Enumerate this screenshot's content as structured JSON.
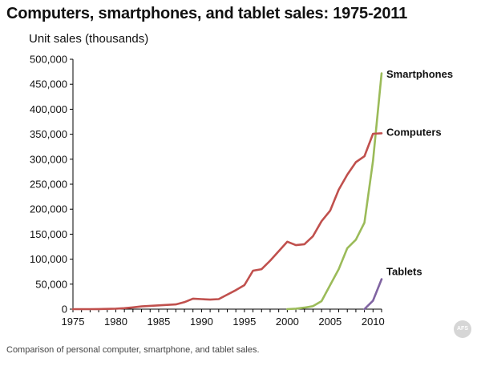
{
  "caption": "Comparison of personal computer, smartphone, and tablet sales.",
  "chart_data": {
    "type": "line",
    "title": "Computers, smartphones, and tablet sales:  1975-2011",
    "ylabel": "Unit sales (thousands)",
    "xlabel": "",
    "xlim": [
      1975,
      2011
    ],
    "ylim": [
      0,
      500000
    ],
    "x_ticks": [
      1975,
      1980,
      1985,
      1990,
      1995,
      2000,
      2005,
      2010
    ],
    "y_ticks": [
      0,
      50000,
      100000,
      150000,
      200000,
      250000,
      300000,
      350000,
      400000,
      450000,
      500000
    ],
    "y_tick_labels": [
      "0",
      "50,000",
      "100,000",
      "150,000",
      "200,000",
      "250,000",
      "300,000",
      "350,000",
      "400,000",
      "450,000",
      "500,000"
    ],
    "grid": false,
    "legend": "labels at line ends",
    "series": [
      {
        "name": "Smartphones",
        "color": "#9bbb59",
        "x": [
          2000,
          2001,
          2002,
          2003,
          2004,
          2005,
          2006,
          2007,
          2008,
          2009,
          2010,
          2011
        ],
        "values": [
          0,
          1000,
          3000,
          6000,
          16000,
          48000,
          80000,
          122000,
          139000,
          173000,
          297000,
          472000
        ]
      },
      {
        "name": "Computers",
        "color": "#c0504d",
        "x": [
          1975,
          1976,
          1977,
          1978,
          1979,
          1980,
          1981,
          1982,
          1983,
          1984,
          1985,
          1986,
          1987,
          1988,
          1989,
          1990,
          1991,
          1992,
          1993,
          1994,
          1995,
          1996,
          1997,
          1998,
          1999,
          2000,
          2001,
          2002,
          2003,
          2004,
          2005,
          2006,
          2007,
          2008,
          2009,
          2010,
          2011
        ],
        "values": [
          0,
          0,
          0,
          100,
          500,
          1000,
          2000,
          3500,
          5500,
          6500,
          7500,
          8500,
          9500,
          14000,
          21000,
          20000,
          19000,
          20000,
          29000,
          38000,
          48000,
          77000,
          80000,
          97000,
          116000,
          135000,
          128000,
          130000,
          146000,
          176000,
          197000,
          239000,
          269000,
          294000,
          306000,
          351000,
          352000
        ]
      },
      {
        "name": "Tablets",
        "color": "#8064a2",
        "x": [
          2009,
          2010,
          2011
        ],
        "values": [
          0,
          17000,
          60000
        ]
      }
    ]
  },
  "watermark": "AFS"
}
